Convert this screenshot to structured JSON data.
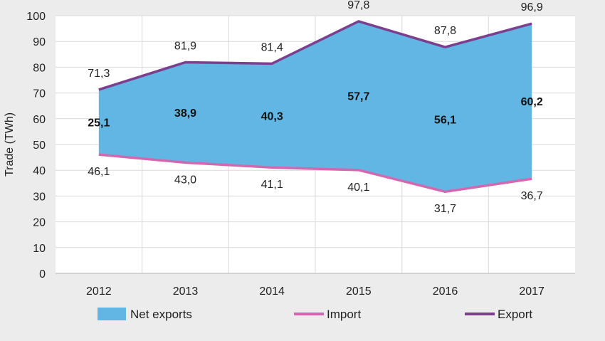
{
  "chart_data": {
    "type": "area",
    "title": "",
    "xlabel": "",
    "ylabel": "Trade (TWh)",
    "ylim": [
      0,
      100
    ],
    "yticks": [
      0,
      10,
      20,
      30,
      40,
      50,
      60,
      70,
      80,
      90,
      100
    ],
    "categories": [
      "2012",
      "2013",
      "2014",
      "2015",
      "2016",
      "2017"
    ],
    "series": [
      {
        "name": "Net exports",
        "kind": "area-between",
        "color": "#62b6e3",
        "values": [
          25.1,
          38.9,
          40.3,
          57.7,
          56.1,
          60.2
        ],
        "labels": [
          "25,1",
          "38,9",
          "40,3",
          "57,7",
          "56,1",
          "60,2"
        ]
      },
      {
        "name": "Import",
        "kind": "line",
        "color": "#d468b0",
        "values": [
          46.1,
          43.0,
          41.1,
          40.1,
          31.7,
          36.7
        ],
        "labels": [
          "46,1",
          "43,0",
          "41,1",
          "40,1",
          "31,7",
          "36,7"
        ]
      },
      {
        "name": "Export",
        "kind": "line",
        "color": "#7b3f8e",
        "values": [
          71.3,
          81.9,
          81.4,
          97.8,
          87.8,
          96.9
        ],
        "labels": [
          "71,3",
          "81,9",
          "81,4",
          "97,8",
          "87,8",
          "96,9"
        ]
      }
    ],
    "grid": true,
    "legend_position": "bottom"
  }
}
